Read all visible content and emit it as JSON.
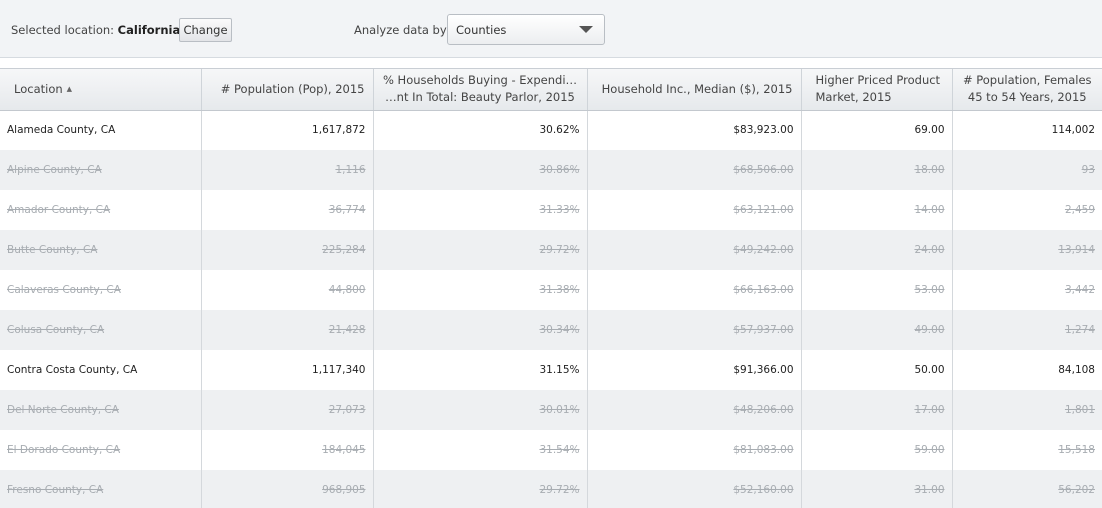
{
  "header": {
    "selected_location_label": "Selected location:",
    "selected_location_value": "California",
    "change_button": "Change",
    "analyze_label": "Analyze data by:",
    "analyze_value": "Counties"
  },
  "table": {
    "columns": [
      {
        "label": "Location",
        "sort": "ascending"
      },
      {
        "label": "# Population (Pop), 2015"
      },
      {
        "label": "% Households Buying - Expendi… …nt In Total: Beauty Parlor, 2015"
      },
      {
        "label": "Household Inc., Median ($), 2015"
      },
      {
        "label": "Higher Priced Product Market, 2015"
      },
      {
        "label": "# Population, Females 45 to 54 Years, 2015"
      }
    ],
    "rows": [
      {
        "location": "Alameda County, CA",
        "pop": "1,617,872",
        "beauty": "30.62%",
        "income": "$83,923.00",
        "market": "69.00",
        "females": "114,002",
        "enabled": true
      },
      {
        "location": "Alpine County, CA",
        "pop": "1,116",
        "beauty": "30.86%",
        "income": "$68,506.00",
        "market": "18.00",
        "females": "93",
        "enabled": false
      },
      {
        "location": "Amador County, CA",
        "pop": "36,774",
        "beauty": "31.33%",
        "income": "$63,121.00",
        "market": "14.00",
        "females": "2,459",
        "enabled": false
      },
      {
        "location": "Butte County, CA",
        "pop": "225,284",
        "beauty": "29.72%",
        "income": "$49,242.00",
        "market": "24.00",
        "females": "13,914",
        "enabled": false
      },
      {
        "location": "Calaveras County, CA",
        "pop": "44,800",
        "beauty": "31.38%",
        "income": "$66,163.00",
        "market": "53.00",
        "females": "3,442",
        "enabled": false
      },
      {
        "location": "Colusa County, CA",
        "pop": "21,428",
        "beauty": "30.34%",
        "income": "$57,937.00",
        "market": "49.00",
        "females": "1,274",
        "enabled": false
      },
      {
        "location": "Contra Costa County, CA",
        "pop": "1,117,340",
        "beauty": "31.15%",
        "income": "$91,366.00",
        "market": "50.00",
        "females": "84,108",
        "enabled": true
      },
      {
        "location": "Del Norte County, CA",
        "pop": "27,073",
        "beauty": "30.01%",
        "income": "$48,206.00",
        "market": "17.00",
        "females": "1,801",
        "enabled": false
      },
      {
        "location": "El Dorado County, CA",
        "pop": "184,045",
        "beauty": "31.54%",
        "income": "$81,083.00",
        "market": "59.00",
        "females": "15,518",
        "enabled": false
      },
      {
        "location": "Fresno County, CA",
        "pop": "968,905",
        "beauty": "29.72%",
        "income": "$52,160.00",
        "market": "31.00",
        "females": "56,202",
        "enabled": false
      }
    ]
  }
}
